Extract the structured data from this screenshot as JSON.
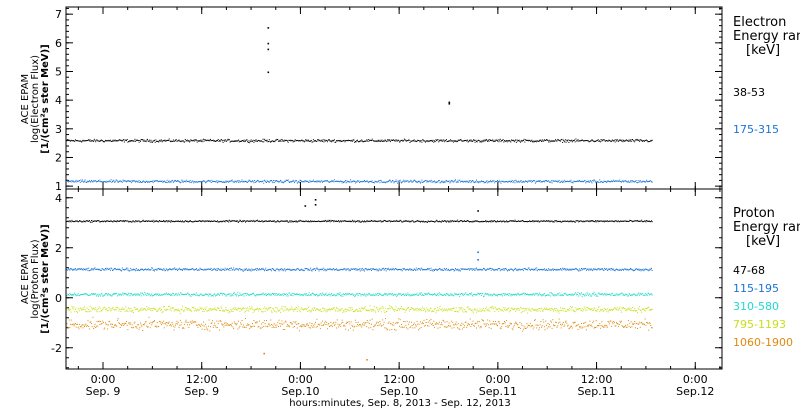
{
  "chart_data": {
    "type": "scatter",
    "xlabel": "hours:minutes, Sep. 8, 2013 - Sep. 12, 2013",
    "x_ticks": [
      {
        "line1": "0:00",
        "line2": "Sep. 9"
      },
      {
        "line1": "12:00",
        "line2": "Sep. 9"
      },
      {
        "line1": "0:00",
        "line2": "Sep.10"
      },
      {
        "line1": "12:00",
        "line2": "Sep.10"
      },
      {
        "line1": "0:00",
        "line2": "Sep.11"
      },
      {
        "line1": "12:00",
        "line2": "Sep.11"
      },
      {
        "line1": "0:00",
        "line2": "Sep.12"
      }
    ],
    "xlim": [
      "2013-09-08T19:30",
      "2013-09-12T03:15"
    ],
    "data_end": "2013-09-11T18:45",
    "panels": [
      {
        "name": "electron",
        "ylabel": [
          "ACE EPAM",
          "log(Electron Flux)",
          "[1/(cm²s ster MeV)]"
        ],
        "ylim": [
          0.9,
          7.25
        ],
        "yticks": [
          1,
          2,
          3,
          4,
          5,
          6,
          7
        ],
        "legend_title": [
          "Electron",
          "Energy ranges",
          "[keV]"
        ],
        "series": [
          {
            "name": "38-53",
            "color": "#000000",
            "baseline": 2.6,
            "spread": 0.07,
            "spikes": [
              {
                "x": "2013-09-09T20:00",
                "y": 6.55
              },
              {
                "x": "2013-09-09T20:00",
                "y": 6.0
              },
              {
                "x": "2013-09-09T20:00",
                "y": 5.8
              },
              {
                "x": "2013-09-09T20:00",
                "y": 5.0
              },
              {
                "x": "2013-09-10T18:00",
                "y": 3.95
              },
              {
                "x": "2013-09-10T18:00",
                "y": 3.9
              }
            ]
          },
          {
            "name": "175-315",
            "color": "#1a74d6",
            "baseline": 1.18,
            "spread": 0.07,
            "spikes": []
          }
        ]
      },
      {
        "name": "proton",
        "ylabel": [
          "ACE EPAM",
          "log(Proton Flux)",
          "[1/(cm²s ster MeV)]"
        ],
        "ylim": [
          -2.85,
          4.35
        ],
        "yticks": [
          -2,
          0,
          2,
          4
        ],
        "legend_title": [
          "Proton",
          "Energy ranges",
          "[keV]"
        ],
        "series": [
          {
            "name": "47-68",
            "color": "#000000",
            "baseline": 3.08,
            "spread": 0.05,
            "spikes": [
              {
                "x": "2013-09-10T00:30",
                "y": 3.7
              },
              {
                "x": "2013-09-10T01:45",
                "y": 3.95
              },
              {
                "x": "2013-09-10T01:45",
                "y": 3.75
              },
              {
                "x": "2013-09-10T21:30",
                "y": 3.5
              }
            ]
          },
          {
            "name": "115-195",
            "color": "#1a74d6",
            "baseline": 1.15,
            "spread": 0.08,
            "spikes": [
              {
                "x": "2013-09-10T21:30",
                "y": 1.85
              },
              {
                "x": "2013-09-10T21:30",
                "y": 1.55
              }
            ]
          },
          {
            "name": "310-580",
            "color": "#20d8cc",
            "baseline": 0.15,
            "spread": 0.1,
            "spikes": []
          },
          {
            "name": "795-1193",
            "color": "#c8e01a",
            "baseline": -0.45,
            "spread": 0.17,
            "spikes": []
          },
          {
            "name": "1060-1900",
            "color": "#e08a10",
            "baseline": -1.05,
            "spread": 0.3,
            "spikes": [
              {
                "x": "2013-09-09T19:30",
                "y": -2.2
              },
              {
                "x": "2013-09-10T08:00",
                "y": -2.45
              }
            ]
          }
        ]
      }
    ]
  }
}
